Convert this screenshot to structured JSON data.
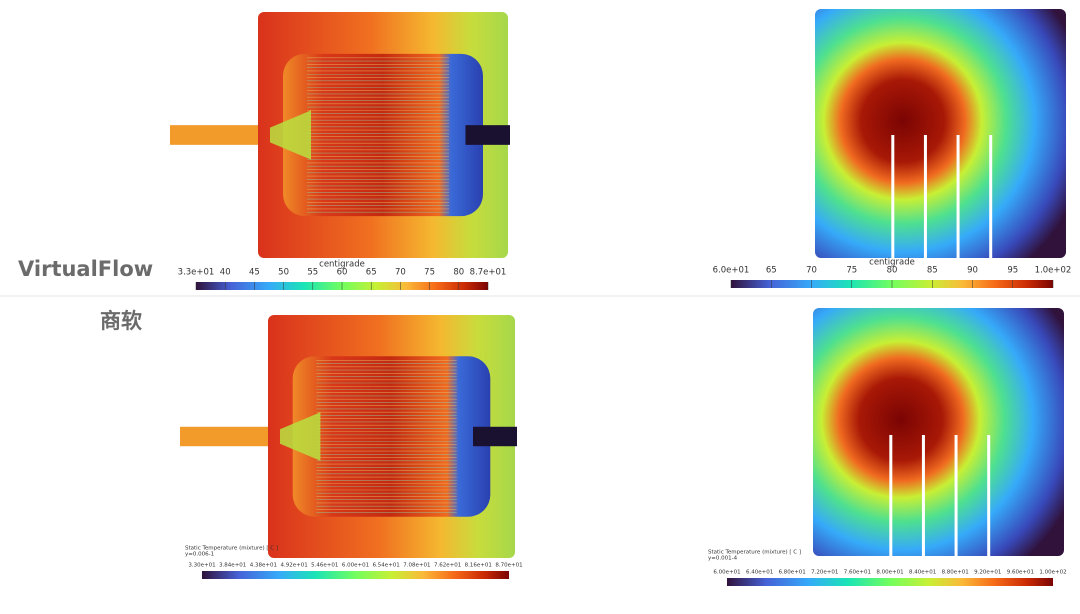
{
  "rows": [
    {
      "label": "VirtualFlow",
      "panels": [
        {
          "colorbar": {
            "title": "centigrade",
            "ticks": [
              "3.3e+01",
              "40",
              "45",
              "50",
              "55",
              "60",
              "65",
              "70",
              "75",
              "80",
              "8.7e+01"
            ]
          }
        },
        {
          "colorbar": {
            "title": "centigrade",
            "ticks": [
              "6.0e+01",
              "65",
              "70",
              "75",
              "80",
              "85",
              "90",
              "95",
              "1.0e+02"
            ]
          }
        }
      ]
    },
    {
      "label": "商软",
      "panels": [
        {
          "colorbar": {
            "title": "Static Temperature (mixture) [ C ]",
            "subtitle": "y=0.006-1",
            "ticks": [
              "3.30e+01",
              "3.84e+01",
              "4.38e+01",
              "4.92e+01",
              "5.46e+01",
              "6.00e+01",
              "6.54e+01",
              "7.08e+01",
              "7.62e+01",
              "8.16e+01",
              "8.70e+01"
            ]
          }
        },
        {
          "colorbar": {
            "title": "Static Temperature (mixture) [ C ]",
            "subtitle": "y=0.001-4",
            "ticks": [
              "6.00e+01",
              "6.40e+01",
              "6.80e+01",
              "7.20e+01",
              "7.60e+01",
              "8.00e+01",
              "8.40e+01",
              "8.80e+01",
              "9.20e+01",
              "9.60e+01",
              "1.00e+02"
            ]
          }
        }
      ]
    }
  ]
}
